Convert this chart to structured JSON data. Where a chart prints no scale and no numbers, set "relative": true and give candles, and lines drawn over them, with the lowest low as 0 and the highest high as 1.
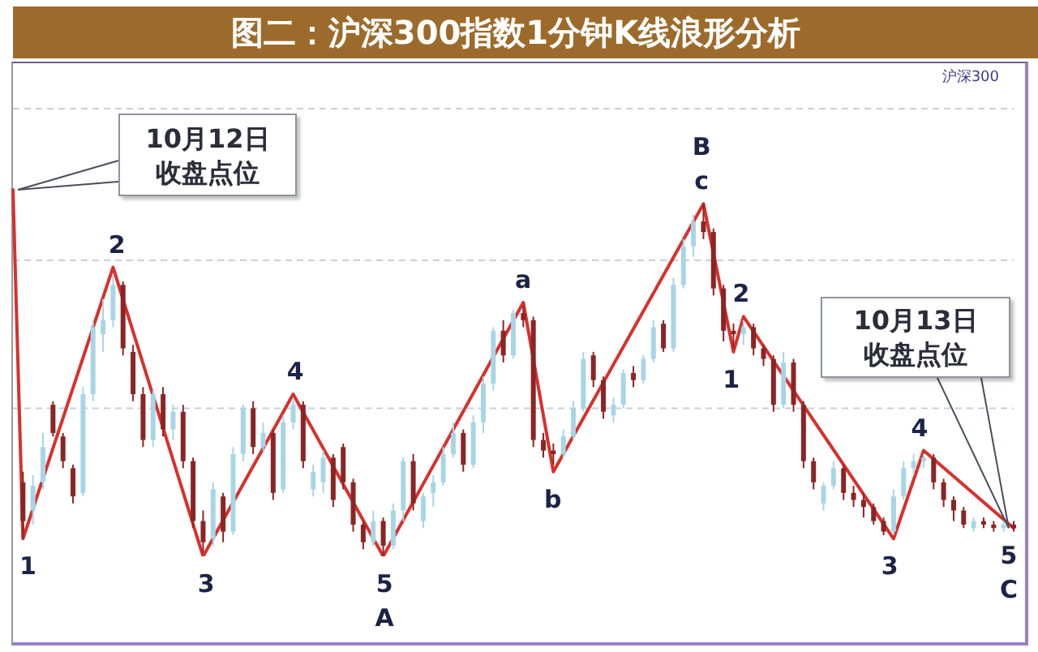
{
  "chart_data": {
    "type": "candlestick",
    "title": "图二：沪深300指数1分钟K线浪形分析",
    "relative": true,
    "categories": [
      null,
      null,
      null,
      null,
      null,
      null,
      null,
      null,
      null,
      null,
      null,
      null,
      null,
      null,
      null,
      null,
      null,
      null,
      null,
      null,
      null,
      null,
      null,
      null,
      null,
      null,
      null,
      null,
      null,
      null,
      null,
      null,
      null,
      null,
      null,
      null,
      null,
      null,
      null,
      null,
      null,
      null,
      null,
      null,
      null,
      null,
      null,
      null,
      null,
      null,
      null,
      null,
      null,
      null,
      null,
      null,
      null,
      null,
      null,
      null,
      null,
      null,
      null,
      null,
      null,
      null,
      null,
      null,
      null,
      null,
      null,
      null,
      null,
      null,
      null,
      null,
      null,
      null,
      null,
      null,
      null,
      null,
      null,
      null,
      null,
      null,
      null,
      null,
      null,
      null,
      null,
      null,
      null,
      null,
      null,
      null,
      null,
      null,
      null,
      null,
      null
    ],
    "ohlc": [
      null,
      [
        0.21,
        0.24,
        0.05,
        0.1
      ],
      [
        0.13,
        0.23,
        0.09,
        0.2
      ],
      [
        0.21,
        0.35,
        0.19,
        0.31
      ],
      [
        0.43,
        0.44,
        0.34,
        0.35
      ],
      [
        0.34,
        0.35,
        0.25,
        0.27
      ],
      [
        0.25,
        0.26,
        0.15,
        0.17
      ],
      [
        0.18,
        0.48,
        0.17,
        0.46
      ],
      [
        0.46,
        0.67,
        0.44,
        0.65
      ],
      [
        0.63,
        0.73,
        0.58,
        0.67
      ],
      [
        0.67,
        0.8,
        0.65,
        0.77
      ],
      [
        0.77,
        0.78,
        0.57,
        0.59
      ],
      [
        0.58,
        0.6,
        0.44,
        0.46
      ],
      [
        0.46,
        0.48,
        0.31,
        0.33
      ],
      [
        0.33,
        0.47,
        0.31,
        0.46
      ],
      [
        0.46,
        0.48,
        0.34,
        0.36
      ],
      [
        0.36,
        0.43,
        0.33,
        0.41
      ],
      [
        0.41,
        0.43,
        0.25,
        0.27
      ],
      [
        0.27,
        0.28,
        0.08,
        0.1
      ],
      [
        0.1,
        0.13,
        0.01,
        0.04
      ],
      [
        0.05,
        0.21,
        0.03,
        0.19
      ],
      [
        0.17,
        0.18,
        0.04,
        0.07
      ],
      [
        0.07,
        0.31,
        0.06,
        0.29
      ],
      [
        0.29,
        0.43,
        0.27,
        0.42
      ],
      [
        0.42,
        0.44,
        0.29,
        0.31
      ],
      [
        0.31,
        0.38,
        0.3,
        0.35
      ],
      [
        0.35,
        0.36,
        0.16,
        0.18
      ],
      [
        0.19,
        0.4,
        0.18,
        0.38
      ],
      [
        0.38,
        0.45,
        0.36,
        0.43
      ],
      [
        0.43,
        0.44,
        0.25,
        0.27
      ],
      [
        0.19,
        0.26,
        0.17,
        0.24
      ],
      [
        0.21,
        0.3,
        0.18,
        0.28
      ],
      [
        0.28,
        0.29,
        0.14,
        0.16
      ],
      [
        0.31,
        0.32,
        0.19,
        0.21
      ],
      [
        0.21,
        0.22,
        0.07,
        0.09
      ],
      [
        0.09,
        0.1,
        0.02,
        0.04
      ],
      [
        0.04,
        0.13,
        0.03,
        0.1
      ],
      [
        0.1,
        0.11,
        0,
        0.03
      ],
      [
        0.03,
        0.15,
        0.02,
        0.13
      ],
      [
        0.13,
        0.28,
        0.1,
        0.27
      ],
      [
        0.27,
        0.29,
        0.13,
        0.15
      ],
      [
        0.1,
        0.18,
        0.08,
        0.17
      ],
      [
        0.18,
        0.23,
        0.14,
        0.21
      ],
      [
        0.21,
        0.31,
        0.2,
        0.29
      ],
      [
        0.29,
        0.38,
        0.28,
        0.35
      ],
      [
        0.35,
        0.36,
        0.24,
        0.26
      ],
      [
        0.26,
        0.4,
        0.25,
        0.38
      ],
      [
        0.38,
        0.51,
        0.35,
        0.49
      ],
      [
        0.49,
        0.65,
        0.47,
        0.64
      ],
      [
        0.64,
        0.67,
        0.55,
        0.57
      ],
      [
        0.57,
        0.7,
        0.56,
        0.69
      ],
      [
        0.69,
        0.71,
        0.65,
        0.67
      ],
      [
        0.67,
        0.68,
        0.31,
        0.33
      ],
      [
        0.33,
        0.35,
        0.28,
        0.3
      ],
      [
        0.3,
        0.32,
        0.26,
        0.29
      ],
      [
        0.29,
        0.36,
        0.28,
        0.34
      ],
      [
        0.34,
        0.44,
        0.33,
        0.42
      ],
      [
        0.42,
        0.58,
        0.41,
        0.56
      ],
      [
        0.57,
        0.58,
        0.48,
        0.5
      ],
      [
        0.5,
        0.51,
        0.39,
        0.41
      ],
      [
        0.4,
        0.45,
        0.38,
        0.43
      ],
      [
        0.43,
        0.53,
        0.42,
        0.52
      ],
      [
        0.52,
        0.54,
        0.48,
        0.5
      ],
      [
        0.5,
        0.57,
        0.49,
        0.56
      ],
      [
        0.56,
        0.67,
        0.55,
        0.65
      ],
      [
        0.66,
        0.67,
        0.58,
        0.59
      ],
      [
        0.59,
        0.79,
        0.58,
        0.77
      ],
      [
        0.77,
        0.9,
        0.76,
        0.88
      ],
      [
        0.88,
        0.97,
        0.85,
        0.95
      ],
      [
        0.95,
        1,
        0.9,
        0.92
      ],
      [
        0.92,
        0.93,
        0.74,
        0.76
      ],
      [
        0.76,
        0.77,
        0.61,
        0.64
      ],
      [
        0.64,
        0.66,
        0.59,
        0.63
      ],
      [
        0.63,
        0.67,
        0.6,
        0.65
      ],
      [
        0.65,
        0.66,
        0.57,
        0.59
      ],
      [
        0.59,
        0.6,
        0.54,
        0.56
      ],
      [
        0.56,
        0.57,
        0.41,
        0.43
      ],
      [
        0.43,
        0.58,
        0.42,
        0.55
      ],
      [
        0.55,
        0.56,
        0.41,
        0.43
      ],
      [
        0.43,
        0.44,
        0.25,
        0.27
      ],
      [
        0.27,
        0.28,
        0.19,
        0.21
      ],
      [
        0.15,
        0.21,
        0.13,
        0.2
      ],
      [
        0.2,
        0.27,
        0.19,
        0.25
      ],
      [
        0.25,
        0.26,
        0.16,
        0.18
      ],
      [
        0.18,
        0.2,
        0.14,
        0.16
      ],
      [
        0.16,
        0.18,
        0.11,
        0.14
      ],
      [
        0.14,
        0.15,
        0.09,
        0.1
      ],
      [
        0.1,
        0.11,
        0.06,
        0.07
      ],
      [
        0.07,
        0.19,
        0.06,
        0.17
      ],
      [
        0.17,
        0.27,
        0.16,
        0.25
      ],
      [
        0.25,
        0.29,
        0.23,
        0.27
      ],
      [
        0.27,
        0.29,
        0.25,
        0.28
      ],
      [
        0.28,
        0.29,
        0.19,
        0.21
      ],
      [
        0.21,
        0.22,
        0.14,
        0.16
      ],
      [
        0.16,
        0.17,
        0.1,
        0.13
      ],
      [
        0.13,
        0.14,
        0.08,
        0.09
      ],
      [
        0.08,
        0.11,
        0.07,
        0.1
      ],
      [
        0.1,
        0.11,
        0.08,
        0.09
      ],
      [
        0.09,
        0.1,
        0.07,
        0.08
      ],
      [
        0.08,
        0.1,
        0.07,
        0.09
      ],
      [
        0.09,
        0.1,
        0.07,
        0.08
      ]
    ],
    "colors": [
      null,
      "#8b2525",
      "#a8d5e6",
      "#a8d5e6",
      "#8b2525",
      "#8b2525",
      "#8b2525",
      "#a8d5e6",
      "#a8d5e6",
      "#a8d5e6",
      "#a8d5e6",
      "#8b2525",
      "#8b2525",
      "#8b2525",
      "#a8d5e6",
      "#8b2525",
      "#a8d5e6",
      "#8b2525",
      "#8b2525",
      "#8b2525",
      "#a8d5e6",
      "#8b2525",
      "#a8d5e6",
      "#a8d5e6",
      "#8b2525",
      "#a8d5e6",
      "#8b2525",
      "#a8d5e6",
      "#a8d5e6",
      "#8b2525",
      "#a8d5e6",
      "#a8d5e6",
      "#8b2525",
      "#8b2525",
      "#8b2525",
      "#8b2525",
      "#a8d5e6",
      "#8b2525",
      "#a8d5e6",
      "#a8d5e6",
      "#8b2525",
      "#a8d5e6",
      "#a8d5e6",
      "#a8d5e6",
      "#a8d5e6",
      "#8b2525",
      "#a8d5e6",
      "#a8d5e6",
      "#a8d5e6",
      "#8b2525",
      "#a8d5e6",
      "#8b2525",
      "#8b2525",
      "#8b2525",
      "#8b2525",
      "#a8d5e6",
      "#a8d5e6",
      "#a8d5e6",
      "#8b2525",
      "#8b2525",
      "#a8d5e6",
      "#a8d5e6",
      "#8b2525",
      "#a8d5e6",
      "#a8d5e6",
      "#8b2525",
      "#a8d5e6",
      "#a8d5e6",
      "#a8d5e6",
      "#8b2525",
      "#8b2525",
      "#8b2525",
      "#8b2525",
      "#a8d5e6",
      "#8b2525",
      "#8b2525",
      "#8b2525",
      "#a8d5e6",
      "#8b2525",
      "#8b2525",
      "#8b2525",
      "#a8d5e6",
      "#a8d5e6",
      "#8b2525",
      "#8b2525",
      "#8b2525",
      "#8b2525",
      "#8b2525",
      "#a8d5e6",
      "#a8d5e6",
      "#a8d5e6",
      "#a8d5e6",
      "#8b2525",
      "#8b2525",
      "#8b2525",
      "#8b2525",
      "#a8d5e6",
      "#8b2525",
      "#8b2525",
      "#a8d5e6",
      "#8b2525"
    ],
    "series": [
      {
        "type": "line",
        "color": "#d8302c",
        "values": [
          1.04,
          0.05,
          null,
          null,
          null,
          null,
          null,
          null,
          null,
          null,
          0.82,
          null,
          null,
          null,
          null,
          null,
          null,
          null,
          null,
          0,
          null,
          null,
          null,
          null,
          null,
          null,
          null,
          null,
          0.46,
          null,
          null,
          null,
          null,
          null,
          null,
          null,
          null,
          0,
          null,
          null,
          null,
          null,
          null,
          null,
          null,
          null,
          null,
          null,
          null,
          null,
          null,
          0.72,
          null,
          null,
          0.24,
          null,
          null,
          null,
          null,
          null,
          null,
          null,
          null,
          null,
          null,
          null,
          null,
          null,
          null,
          1,
          null,
          null,
          0.58,
          0.68,
          null,
          null,
          null,
          null,
          null,
          null,
          null,
          null,
          null,
          null,
          null,
          null,
          null,
          null,
          0.05,
          null,
          null,
          0.3,
          null,
          null,
          null,
          null,
          null,
          null,
          null,
          null,
          0.08
        ]
      }
    ],
    "ref_lines": [
      {
        "axis": "y",
        "value": 1.27,
        "color": "#c9cfd9",
        "line_style": "dashed"
      },
      {
        "axis": "y",
        "value": 0.84,
        "color": "#c9cfd9",
        "line_style": "dashed"
      },
      {
        "axis": "y",
        "value": 0.42,
        "color": "#c9cfd9",
        "line_style": "dashed"
      }
    ],
    "annotations": [
      "沪深300",
      "10月12日收盘点位",
      "1",
      "2",
      "3",
      "4",
      "5",
      "A",
      "a",
      "b",
      "B",
      "c",
      "1",
      "2",
      "3",
      "4",
      "5",
      "C",
      "10月13日收盘点位"
    ]
  }
}
